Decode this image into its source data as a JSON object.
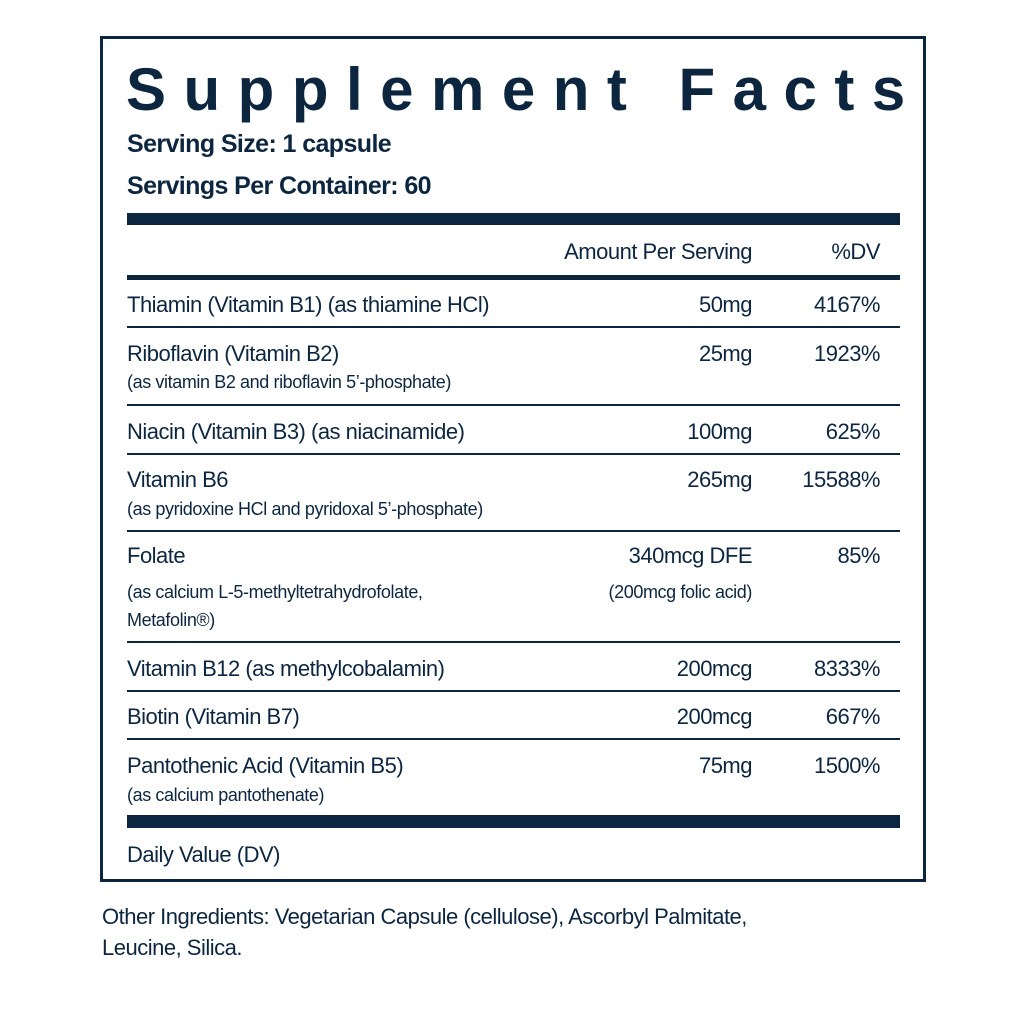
{
  "title": "Supplement Facts",
  "serving_size": "Serving Size: 1 capsule",
  "servings_per_container": "Servings Per Container: 60",
  "header": {
    "amount": "Amount Per Serving",
    "dv": "%DV"
  },
  "rows": [
    {
      "name": "Thiamin (Vitamin B1) (as thiamine HCl)",
      "sub": "",
      "amount": "50mg",
      "dv": "4167%"
    },
    {
      "name": "Riboflavin (Vitamin B2)",
      "sub": "(as vitamin B2 and riboflavin 5’-phosphate)",
      "amount": "25mg",
      "dv": "1923%"
    },
    {
      "name": "Niacin (Vitamin B3) (as niacinamide)",
      "sub": "",
      "amount": "100mg",
      "dv": "625%"
    },
    {
      "name": "Vitamin B6",
      "sub": "(as pyridoxine HCl and pyridoxal 5’-phosphate)",
      "amount": "265mg",
      "dv": "15588%"
    },
    {
      "name": "Folate",
      "sub": "(as calcium L-5-methyltetrahydrofolate,",
      "sub2": "Metafolin®)",
      "amount": "340mcg DFE",
      "amount_sub": "(200mcg folic acid)",
      "dv": "85%"
    },
    {
      "name": "Vitamin B12 (as methylcobalamin)",
      "sub": "",
      "amount": "200mcg",
      "dv": "8333%"
    },
    {
      "name": "Biotin (Vitamin B7)",
      "sub": "",
      "amount": "200mcg",
      "dv": "667%"
    },
    {
      "name": "Pantothenic Acid (Vitamin B5)",
      "sub": "(as calcium pantothenate)",
      "amount": "75mg",
      "dv": "1500%"
    }
  ],
  "footer": "Daily Value (DV)",
  "other_ingredients": {
    "line1": "Other Ingredients: Vegetarian Capsule (cellulose), Ascorbyl Palmitate,",
    "line2": "Leucine, Silica."
  }
}
